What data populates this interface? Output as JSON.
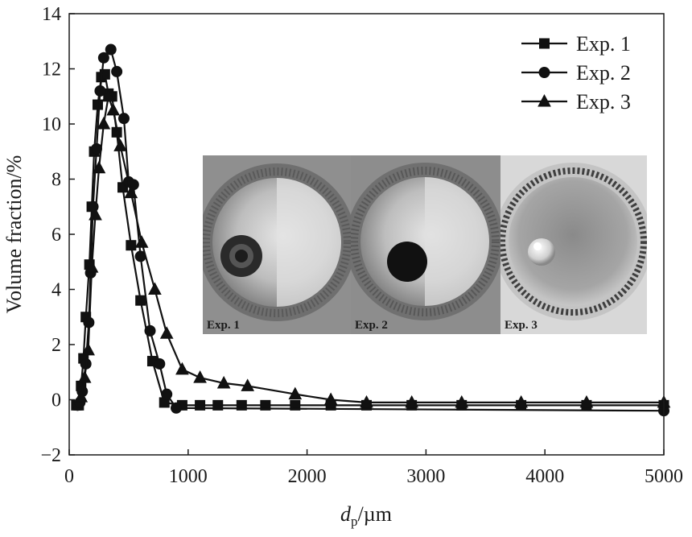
{
  "chart_data": {
    "type": "line",
    "xlabel": "d_p/µm",
    "ylabel": "Volume fraction/%",
    "xlim": [
      0,
      5000
    ],
    "ylim": [
      -2,
      14
    ],
    "xticks": [
      "0",
      "1000",
      "2000",
      "3000",
      "4000",
      "5000"
    ],
    "yticks": [
      "−2",
      "0",
      "2",
      "4",
      "6",
      "8",
      "10",
      "12",
      "14"
    ],
    "grid": false,
    "legend_position": "top-right",
    "series": [
      {
        "name": "Exp. 1",
        "marker": "square",
        "points": [
          [
            60,
            -0.2
          ],
          [
            80,
            -0.2
          ],
          [
            100,
            0.5
          ],
          [
            120,
            1.5
          ],
          [
            140,
            3.0
          ],
          [
            170,
            4.9
          ],
          [
            190,
            7.0
          ],
          [
            210,
            9.0
          ],
          [
            240,
            10.7
          ],
          [
            270,
            11.7
          ],
          [
            300,
            11.8
          ],
          [
            330,
            11.1
          ],
          [
            360,
            11.0
          ],
          [
            400,
            9.7
          ],
          [
            450,
            7.7
          ],
          [
            520,
            5.6
          ],
          [
            600,
            3.6
          ],
          [
            700,
            1.4
          ],
          [
            800,
            -0.1
          ],
          [
            950,
            -0.2
          ],
          [
            1100,
            -0.2
          ],
          [
            1250,
            -0.2
          ],
          [
            1450,
            -0.2
          ],
          [
            1650,
            -0.2
          ],
          [
            1900,
            -0.2
          ],
          [
            2200,
            -0.2
          ],
          [
            2500,
            -0.2
          ],
          [
            2880,
            -0.2
          ],
          [
            3300,
            -0.2
          ],
          [
            3800,
            -0.2
          ],
          [
            4350,
            -0.2
          ],
          [
            5000,
            -0.2
          ]
        ]
      },
      {
        "name": "Exp. 2",
        "marker": "circle",
        "points": [
          [
            70,
            -0.2
          ],
          [
            90,
            -0.1
          ],
          [
            110,
            0.3
          ],
          [
            140,
            1.3
          ],
          [
            165,
            2.8
          ],
          [
            180,
            4.6
          ],
          [
            200,
            7.0
          ],
          [
            230,
            9.1
          ],
          [
            260,
            11.2
          ],
          [
            290,
            12.4
          ],
          [
            350,
            12.7
          ],
          [
            400,
            11.9
          ],
          [
            460,
            10.2
          ],
          [
            500,
            7.9
          ],
          [
            540,
            7.8
          ],
          [
            600,
            5.2
          ],
          [
            680,
            2.5
          ],
          [
            760,
            1.3
          ],
          [
            820,
            0.2
          ],
          [
            900,
            -0.3
          ],
          [
            5000,
            -0.4
          ]
        ]
      },
      {
        "name": "Exp. 3",
        "marker": "triangle",
        "points": [
          [
            100,
            0.1
          ],
          [
            130,
            0.8
          ],
          [
            160,
            1.8
          ],
          [
            190,
            4.8
          ],
          [
            220,
            6.7
          ],
          [
            250,
            8.4
          ],
          [
            290,
            10.0
          ],
          [
            330,
            11.0
          ],
          [
            370,
            10.5
          ],
          [
            430,
            9.2
          ],
          [
            520,
            7.5
          ],
          [
            610,
            5.7
          ],
          [
            720,
            4.0
          ],
          [
            820,
            2.4
          ],
          [
            950,
            1.1
          ],
          [
            1100,
            0.8
          ],
          [
            1300,
            0.6
          ],
          [
            1500,
            0.5
          ],
          [
            1900,
            0.2
          ],
          [
            2200,
            0.0
          ],
          [
            2500,
            -0.1
          ],
          [
            2880,
            -0.1
          ],
          [
            3300,
            -0.1
          ],
          [
            3800,
            -0.1
          ],
          [
            4350,
            -0.1
          ],
          [
            5000,
            -0.1
          ]
        ]
      }
    ]
  },
  "inset": {
    "photos": [
      {
        "label": "Exp. 1",
        "center": "dark-core"
      },
      {
        "label": "Exp. 2",
        "center": "dark-round"
      },
      {
        "label": "Exp. 3",
        "center": "light-bubble"
      }
    ]
  }
}
